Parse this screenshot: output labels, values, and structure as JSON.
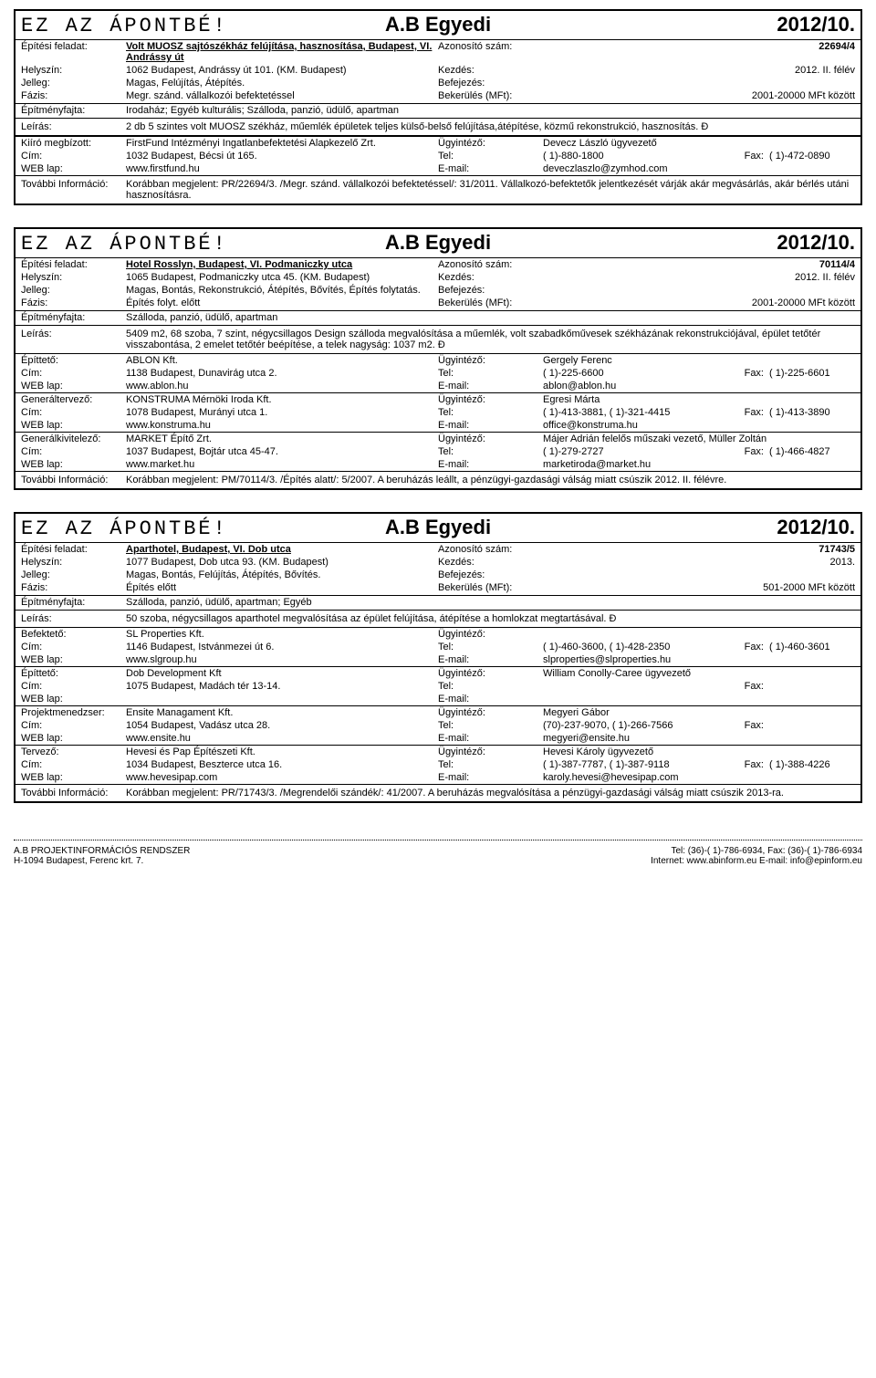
{
  "brand_header": {
    "left": "EZ AZ ÁPONTBÉ!",
    "mid": "A.B Egyedi",
    "right": "2012/10."
  },
  "labels": {
    "epitesi": "Építési feladat:",
    "azonosito": "Azonosító szám:",
    "helyszin": "Helyszín:",
    "kezdes": "Kezdés:",
    "jelleg": "Jelleg:",
    "befejezes": "Befejezés:",
    "fazis": "Fázis:",
    "bekerules": "Bekerülés (MFt):",
    "epitmenyfajta": "Építményfajta:",
    "leiras": "Leírás:",
    "kiiro": "Kiíró megbízott:",
    "cim": "Cím:",
    "weblap": "WEB lap:",
    "ugyintez": "Ügyintéző:",
    "tel": "Tel:",
    "fax": "Fax:",
    "email": "E-mail:",
    "tovabbi": "További Információ:",
    "epitteto": "Építtető:",
    "generaltervezo": "Generáltervező:",
    "generalkivitelezo": "Generálkivitelező:",
    "befekteto": "Befektető:",
    "projektmenedzser": "Projektmenedzser:",
    "tervezo": "Tervező:"
  },
  "card1": {
    "title": "Volt MUOSZ sajtószékház felújítása,  hasznosítása, Budapest, VI. Andrássy út",
    "azonosito": "22694/4",
    "helyszin": "1062 Budapest, Andrássy út 101. (KM. Budapest)",
    "kezdes": "2012. II. félév",
    "jelleg": "Magas, Felújítás, Átépítés.",
    "befejezes": "",
    "fazis": "Megr. szánd. vállalkozói befektetéssel",
    "bekerules": "2001-20000 MFt között",
    "epitmenyfajta": "Irodaház; Egyéb kulturális; Szálloda, panzió, üdülő, apartman",
    "leiras": "2 db  5 szintes volt MUOSZ székház, műemlék épületek teljes külső-belső felújítása,átépítése, közmű rekonstrukció, hasznosítás. Đ",
    "kiiro": {
      "name": "FirstFund Intézményi Ingatlanbefektetési Alapkezelő Zrt.",
      "ugy": "Devecz László ügyvezető",
      "cim": "1032 Budapest, Bécsi út 165.",
      "tel": "( 1)-880-1800",
      "fax": "( 1)-472-0890",
      "web": "www.firstfund.hu",
      "email": "deveczlaszlo@zymhod.com"
    },
    "tovabbi": "Korábban megjelent: PR/22694/3. /Megr. szánd. vállalkozói befektetéssel/: 31/2011. Vállalkozó-befektetők jelentkezését várják akár megvásárlás, akár bérlés utáni hasznosításra."
  },
  "card2": {
    "title": "Hotel Rosslyn, Budapest, VI. Podmaniczky utca",
    "azonosito": "70114/4",
    "helyszin": "1065 Budapest, Podmaniczky utca 45. (KM. Budapest)",
    "kezdes": "2012. II. félév",
    "jelleg": "Magas, Bontás, Rekonstrukció, Átépítés, Bővítés, Építés folytatás.",
    "befejezes": "",
    "fazis": "Építés folyt. előtt",
    "bekerules": "2001-20000 MFt között",
    "epitmenyfajta": "Szálloda, panzió, üdülő, apartman",
    "leiras": "5409 m2, 68 szoba, 7 szint, négycsillagos Design szálloda megvalósítása a műemlék, volt szabadkőművesek székházának rekonstrukciójával,  épület tetőtér visszabontása, 2 emelet tetőtér beépítése, a telek nagyság: 1037 m2. Đ",
    "parties": [
      {
        "role": "Építtető:",
        "name": "ABLON Kft.",
        "ugy": "Gergely Ferenc",
        "cim": "1138 Budapest, Dunavirág utca 2.",
        "tel": "( 1)-225-6600",
        "fax": "( 1)-225-6601",
        "web": "www.ablon.hu",
        "email": "ablon@ablon.hu"
      },
      {
        "role": "Generáltervező:",
        "name": "KONSTRUMA Mérnöki Iroda Kft.",
        "ugy": "Egresi Márta",
        "cim": "1078 Budapest, Murányi utca 1.",
        "tel": "( 1)-413-3881, ( 1)-321-4415",
        "fax": "( 1)-413-3890",
        "web": "www.konstruma.hu",
        "email": "office@konstruma.hu"
      },
      {
        "role": "Generálkivitelező:",
        "name": "MARKET Építő Zrt.",
        "ugy": "Májer Adrián felelős műszaki vezető, Müller Zoltán",
        "cim": "1037 Budapest, Bojtár utca 45-47.",
        "tel": "( 1)-279-2727",
        "fax": "( 1)-466-4827",
        "web": "www.market.hu",
        "email": "marketiroda@market.hu"
      }
    ],
    "tovabbi": "Korábban megjelent: PM/70114/3. /Építés alatt/: 5/2007.  A beruházás leállt, a pénzügyi-gazdasági válság miatt csúszik 2012. II. félévre."
  },
  "card3": {
    "title": "Aparthotel, Budapest, VI. Dob utca",
    "azonosito": "71743/5",
    "helyszin": "1077 Budapest, Dob utca 93. (KM. Budapest)",
    "kezdes": "2013.",
    "jelleg": "Magas, Bontás, Felújítás, Átépítés, Bővítés.",
    "befejezes": "",
    "fazis": "Építés előtt",
    "bekerules": "501-2000 MFt között",
    "epitmenyfajta": "Szálloda, panzió, üdülő, apartman; Egyéb",
    "leiras": "50 szoba, négycsillagos aparthotel megvalósítása az épület felújítása, átépítése a homlokzat megtartásával. Đ",
    "parties": [
      {
        "role": "Befektető:",
        "name": "SL Properties Kft.",
        "ugy": "",
        "cim": "1146 Budapest, Istvánmezei út 6.",
        "tel": "( 1)-460-3600, ( 1)-428-2350",
        "fax": "( 1)-460-3601",
        "web": "www.slgroup.hu",
        "email": "slproperties@slproperties.hu"
      },
      {
        "role": "Építtető:",
        "name": "Dob Development Kft",
        "ugy": "William Conolly-Caree  ügyvezető",
        "cim": "1075 Budapest, Madách tér 13-14.",
        "tel": "",
        "fax": "",
        "web": "",
        "email": ""
      },
      {
        "role": "Projektmenedzser:",
        "name": "Ensite Managament Kft.",
        "ugy": "Megyeri Gábor",
        "cim": "1054 Budapest, Vadász utca 28.",
        "tel": "(70)-237-9070, ( 1)-266-7566",
        "fax": "",
        "web": "www.ensite.hu",
        "email": "megyeri@ensite.hu"
      },
      {
        "role": "Tervező:",
        "name": "Hevesi és Pap Építészeti Kft.",
        "ugy": "Hevesi Károly ügyvezető",
        "cim": "1034 Budapest, Beszterce utca 16.",
        "tel": "( 1)-387-7787, ( 1)-387-9118",
        "fax": "( 1)-388-4226",
        "web": "www.hevesipap.com",
        "email": "karoly.hevesi@hevesipap.com"
      }
    ],
    "tovabbi": "Korábban megjelent: PR/71743/3. /Megrendelői szándék/: 41/2007. A beruházás megvalósítása a pénzügyi-gazdasági válság miatt csúszik 2013-ra."
  },
  "footer": {
    "l1": "A.B PROJEKTINFORMÁCIÓS RENDSZER",
    "l2": "H-1094 Budapest, Ferenc krt. 7.",
    "r1": "Tel: (36)-( 1)-786-6934, Fax: (36)-( 1)-786-6934",
    "r2": "Internet: www.abinform.eu   E-mail: info@epinform.eu"
  }
}
